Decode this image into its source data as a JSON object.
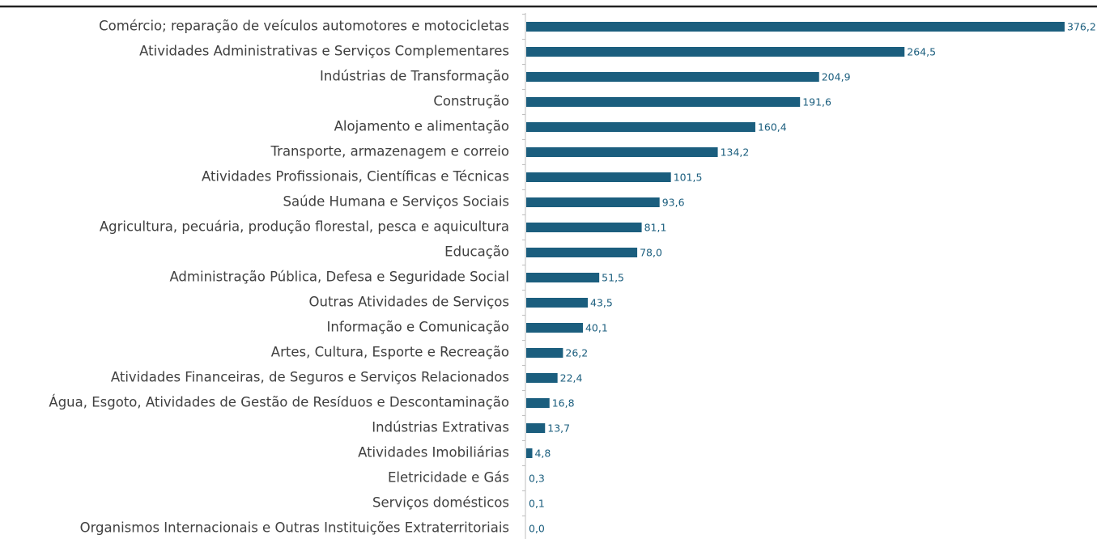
{
  "chart_data": {
    "type": "bar",
    "orientation": "horizontal",
    "color": "#1b5e7e",
    "categories": [
      "Comércio; reparação de veículos automotores e motocicletas",
      "Atividades Administrativas e Serviços Complementares",
      "Indústrias de Transformação",
      "Construção",
      "Alojamento e alimentação",
      "Transporte, armazenagem e correio",
      "Atividades Profissionais, Científicas e Técnicas",
      "Saúde Humana e Serviços Sociais",
      "Agricultura, pecuária, produção florestal, pesca e aquicultura",
      "Educação",
      "Administração Pública, Defesa e Seguridade Social",
      "Outras Atividades de Serviços",
      "Informação e Comunicação",
      "Artes, Cultura, Esporte e Recreação",
      "Atividades Financeiras, de Seguros e Serviços Relacionados",
      "Água, Esgoto, Atividades de Gestão de Resíduos e Descontaminação",
      "Indústrias Extrativas",
      "Atividades Imobiliárias",
      "Eletricidade e Gás",
      "Serviços domésticos",
      "Organismos Internacionais e Outras Instituições Extraterritoriais"
    ],
    "values": [
      376.2,
      264.5,
      204.9,
      191.6,
      160.4,
      134.2,
      101.5,
      93.6,
      81.1,
      78.0,
      51.5,
      43.5,
      40.1,
      26.2,
      22.4,
      16.8,
      13.7,
      4.8,
      0.3,
      0.1,
      0.0
    ],
    "value_labels": [
      "376,2",
      "264,5",
      "204,9",
      "191,6",
      "160,4",
      "134,2",
      "101,5",
      "93,6",
      "81,1",
      "78,0",
      "51,5",
      "43,5",
      "40,1",
      "26,2",
      "22,4",
      "16,8",
      "13,7",
      "4,8",
      "0,3",
      "0,1",
      "0,0"
    ]
  }
}
